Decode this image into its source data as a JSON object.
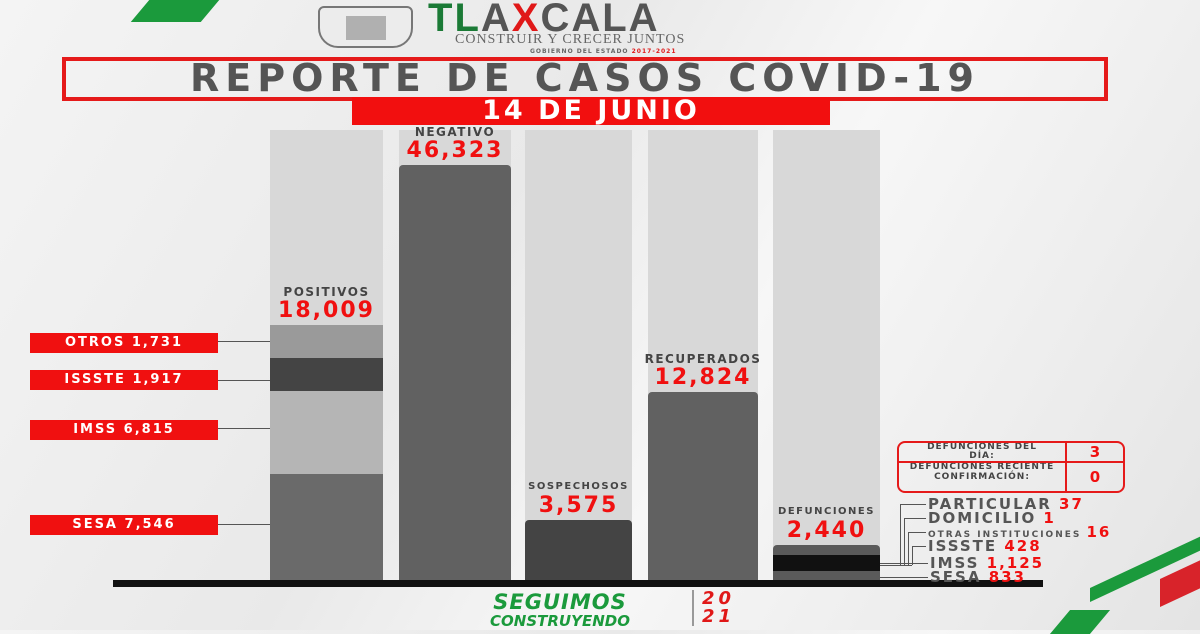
{
  "header": {
    "logo_text": "TLAXCALA",
    "slogan": "CONSTRUIR Y CRECER JUNTOS",
    "gov": "GOBIERNO DEL ESTADO",
    "gov_years": "2017-2021"
  },
  "title": "REPORTE DE CASOS COVID-19",
  "date": "14 DE JUNIO",
  "colors": {
    "accent_red": "#f01010",
    "green": "#1b9a3c",
    "bar_dark": "#616161",
    "bar_light": "#d8d8d8"
  },
  "chart_data": {
    "type": "bar",
    "categories": [
      "POSITIVOS",
      "NEGATIVO",
      "SOSPECHOSOS",
      "RECUPERADOS",
      "DEFUNCIONES"
    ],
    "values": [
      18009,
      46323,
      3575,
      12824,
      2440
    ],
    "value_labels": [
      "18,009",
      "46,323",
      "3,575",
      "12,824",
      "2,440"
    ],
    "positivos_breakdown": [
      {
        "name": "OTROS",
        "value": 1731,
        "label": "1,731"
      },
      {
        "name": "ISSSTE",
        "value": 1917,
        "label": "1,917"
      },
      {
        "name": "IMSS",
        "value": 6815,
        "label": "6,815"
      },
      {
        "name": "SESA",
        "value": 7546,
        "label": "7,546"
      }
    ],
    "defunciones_breakdown": [
      {
        "name": "PARTICULAR",
        "value": 37,
        "label": "37"
      },
      {
        "name": "DOMICILIO",
        "value": 1,
        "label": "1"
      },
      {
        "name": "OTRAS INSTITUCIONES",
        "value": 16,
        "label": "16"
      },
      {
        "name": "ISSSTE",
        "value": 428,
        "label": "428"
      },
      {
        "name": "IMSS",
        "value": 1125,
        "label": "1,125"
      },
      {
        "name": "SESA",
        "value": 833,
        "label": "833"
      }
    ]
  },
  "defunciones_table": [
    {
      "label": "DEFUNCIONES DEL DÍA:",
      "value": "3"
    },
    {
      "label": "DEFUNCIONES RECIENTE CONFIRMACIÓN:",
      "value": "0"
    }
  ],
  "footer": {
    "line1": "SEGUIMOS",
    "line2": "CONSTRUYENDO",
    "year_top": "20",
    "year_bottom": "21"
  }
}
